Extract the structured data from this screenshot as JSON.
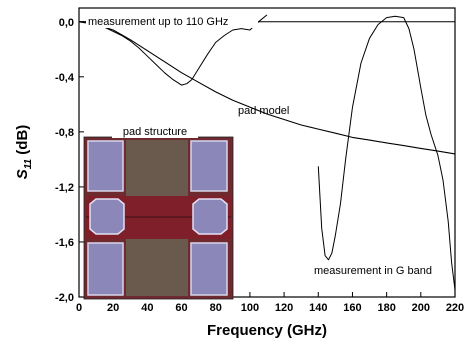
{
  "chart_data": {
    "type": "line",
    "xlabel": "Frequency (GHz)",
    "ylabel": "S11 (dB)",
    "ylabel_main": "S",
    "ylabel_sub": "11",
    "ylabel_unit": " (dB)",
    "xlim": [
      0,
      220
    ],
    "ylim": [
      -2.0,
      0.1
    ],
    "x_ticks": [
      0,
      20,
      40,
      60,
      80,
      100,
      120,
      140,
      160,
      180,
      200,
      220
    ],
    "y_ticks": [
      0.0,
      -0.4,
      -0.8,
      -1.2,
      -1.6,
      -2.0
    ],
    "y_tick_labels": [
      "0,0",
      "-0,4",
      "-0,8",
      "-1,2",
      "-1,6",
      "-2,0"
    ],
    "reference_line": 0.0,
    "series": [
      {
        "name": "measurement up to 110 GHz",
        "x": [
          0,
          5,
          10,
          15,
          20,
          25,
          30,
          35,
          40,
          45,
          50,
          55,
          60,
          63,
          66,
          70,
          75,
          80,
          85,
          90,
          95,
          100,
          105,
          110
        ],
        "y": [
          0.0,
          0.0,
          -0.02,
          -0.04,
          -0.07,
          -0.1,
          -0.14,
          -0.19,
          -0.25,
          -0.31,
          -0.37,
          -0.42,
          -0.46,
          -0.45,
          -0.42,
          -0.34,
          -0.24,
          -0.15,
          -0.1,
          -0.06,
          -0.05,
          -0.06,
          0.0,
          0.05
        ]
      },
      {
        "name": "pad model",
        "x": [
          0,
          10,
          20,
          30,
          40,
          50,
          60,
          70,
          80,
          90,
          100,
          110,
          120,
          130,
          140,
          150,
          160,
          170,
          180,
          190,
          200,
          210,
          220
        ],
        "y": [
          0.0,
          -0.02,
          -0.06,
          -0.13,
          -0.21,
          -0.29,
          -0.37,
          -0.44,
          -0.51,
          -0.57,
          -0.62,
          -0.67,
          -0.71,
          -0.75,
          -0.78,
          -0.81,
          -0.84,
          -0.86,
          -0.88,
          -0.9,
          -0.92,
          -0.94,
          -0.96
        ]
      },
      {
        "name": "measurement in G band",
        "x": [
          140,
          142,
          144,
          146,
          148,
          150,
          153,
          156,
          160,
          165,
          170,
          175,
          180,
          185,
          190,
          193,
          196,
          200,
          203,
          206,
          210,
          213,
          216,
          218,
          220
        ],
        "y": [
          -1.05,
          -1.5,
          -1.7,
          -1.73,
          -1.68,
          -1.55,
          -1.32,
          -1.0,
          -0.62,
          -0.3,
          -0.12,
          -0.02,
          0.03,
          0.04,
          0.03,
          -0.05,
          -0.2,
          -0.48,
          -0.68,
          -0.82,
          -0.97,
          -1.15,
          -1.45,
          -1.75,
          -1.95
        ]
      }
    ],
    "annotations": {
      "measurement_up_to_110": "measurement up to 110 GHz",
      "pad_model": "pad model",
      "pad_structure": "pad structure",
      "measurement_g_band": "measurement in G band"
    },
    "grid": false
  }
}
